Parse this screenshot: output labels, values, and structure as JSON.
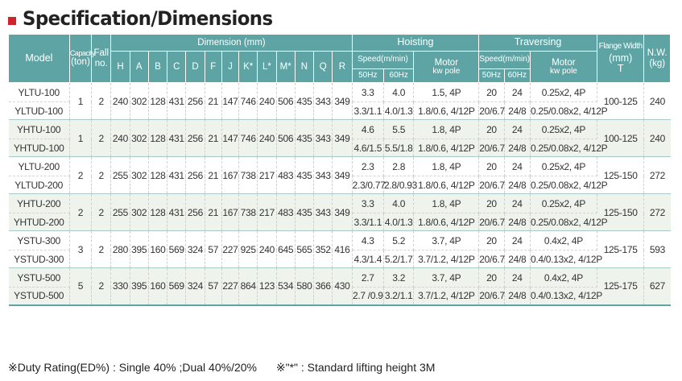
{
  "title": "Specification/Dimensions",
  "header": {
    "model": "Model",
    "capacity": "Capacity",
    "capacity_unit": "(ton)",
    "fall": "Fall",
    "fall_unit": "no.",
    "dimension": "Dimension (mm)",
    "dims": [
      "H",
      "A",
      "B",
      "C",
      "D",
      "F",
      "J",
      "K*",
      "L*",
      "M*",
      "N",
      "Q",
      "R"
    ],
    "hoisting": "Hoisting",
    "traversing": "Traversing",
    "speed": "Speed(m/min)",
    "motor": "Motor",
    "kw_pole": "kw pole",
    "hz50": "50Hz",
    "hz60": "60Hz",
    "flange": "Flange Width",
    "flange_unit": "(mm)",
    "flange_sym": "T",
    "nw": "N.W.",
    "nw_unit": "(kg)"
  },
  "groups": [
    {
      "capacity": "1",
      "fall": "2",
      "dims": [
        "240",
        "302",
        "128",
        "431",
        "256",
        "21",
        "147",
        "746",
        "240",
        "506",
        "435",
        "343",
        "349"
      ],
      "flange": "100-125",
      "nw": "240",
      "rows": [
        {
          "model": "YLTU-100",
          "h50": "3.3",
          "h60": "4.0",
          "hmotor": "1.5, 4P",
          "t50": "20",
          "t60": "24",
          "tmotor": "0.25x2, 4P"
        },
        {
          "model": "YLTUD-100",
          "h50": "3.3/1.1",
          "h60": "4.0/1.3",
          "hmotor": "1.8/0.6, 4/12P",
          "t50": "20/6.7",
          "t60": "24/8",
          "tmotor": "0.25/0.08x2, 4/12P"
        }
      ]
    },
    {
      "capacity": "1",
      "fall": "2",
      "dims": [
        "240",
        "302",
        "128",
        "431",
        "256",
        "21",
        "147",
        "746",
        "240",
        "506",
        "435",
        "343",
        "349"
      ],
      "flange": "100-125",
      "nw": "240",
      "rows": [
        {
          "model": "YHTU-100",
          "h50": "4.6",
          "h60": "5.5",
          "hmotor": "1.8, 4P",
          "t50": "20",
          "t60": "24",
          "tmotor": "0.25x2, 4P"
        },
        {
          "model": "YHTUD-100",
          "h50": "4.6/1.5",
          "h60": "5.5/1.8",
          "hmotor": "1.8/0.6, 4/12P",
          "t50": "20/6.7",
          "t60": "24/8",
          "tmotor": "0.25/0.08x2, 4/12P"
        }
      ]
    },
    {
      "capacity": "2",
      "fall": "2",
      "dims": [
        "255",
        "302",
        "128",
        "431",
        "256",
        "21",
        "167",
        "738",
        "217",
        "483",
        "435",
        "343",
        "349"
      ],
      "flange": "125-150",
      "nw": "272",
      "rows": [
        {
          "model": "YLTU-200",
          "h50": "2.3",
          "h60": "2.8",
          "hmotor": "1.8, 4P",
          "t50": "20",
          "t60": "24",
          "tmotor": "0.25x2, 4P"
        },
        {
          "model": "YLTUD-200",
          "h50": "2.3/0.77",
          "h60": "2.8/0.93",
          "hmotor": "1.8/0.6, 4/12P",
          "t50": "20/6.7",
          "t60": "24/8",
          "tmotor": "0.25/0.08x2, 4/12P"
        }
      ]
    },
    {
      "capacity": "2",
      "fall": "2",
      "dims": [
        "255",
        "302",
        "128",
        "431",
        "256",
        "21",
        "167",
        "738",
        "217",
        "483",
        "435",
        "343",
        "349"
      ],
      "flange": "125-150",
      "nw": "272",
      "rows": [
        {
          "model": "YHTU-200",
          "h50": "3.3",
          "h60": "4.0",
          "hmotor": "1.8, 4P",
          "t50": "20",
          "t60": "24",
          "tmotor": "0.25x2, 4P"
        },
        {
          "model": "YHTUD-200",
          "h50": "3.3/1.1",
          "h60": "4.0/1.3",
          "hmotor": "1.8/0.6, 4/12P",
          "t50": "20/6.7",
          "t60": "24/8",
          "tmotor": "0.25/0.08x2, 4/12P"
        }
      ]
    },
    {
      "capacity": "3",
      "fall": "2",
      "dims": [
        "280",
        "395",
        "160",
        "569",
        "324",
        "57",
        "227",
        "925",
        "240",
        "645",
        "565",
        "352",
        "416"
      ],
      "flange": "125-175",
      "nw": "593",
      "rows": [
        {
          "model": "YSTU-300",
          "h50": "4.3",
          "h60": "5.2",
          "hmotor": "3.7, 4P",
          "t50": "20",
          "t60": "24",
          "tmotor": "0.4x2, 4P"
        },
        {
          "model": "YSTUD-300",
          "h50": "4.3/1.4",
          "h60": "5.2/1.7",
          "hmotor": "3.7/1.2, 4/12P",
          "t50": "20/6.7",
          "t60": "24/8",
          "tmotor": "0.4/0.13x2, 4/12P"
        }
      ]
    },
    {
      "capacity": "5",
      "fall": "2",
      "dims": [
        "330",
        "395",
        "160",
        "569",
        "324",
        "57",
        "227",
        "864",
        "123",
        "534",
        "580",
        "366",
        "430"
      ],
      "flange": "125-175",
      "nw": "627",
      "rows": [
        {
          "model": "YSTU-500",
          "h50": "2.7",
          "h60": "3.2",
          "hmotor": "3.7, 4P",
          "t50": "20",
          "t60": "24",
          "tmotor": "0.4x2, 4P"
        },
        {
          "model": "YSTUD-500",
          "h50": "2.7 /0.9",
          "h60": "3.2/1.1",
          "hmotor": "3.7/1.2, 4/12P",
          "t50": "20/6.7",
          "t60": "24/8",
          "tmotor": "0.4/0.13x2, 4/12P"
        }
      ]
    }
  ],
  "footnote": {
    "duty": "※Duty Rating(ED%) : Single 40% ;Dual 40%/20%",
    "star": "※\"*\" : Standard lifting height 3M"
  },
  "colors": {
    "header_bg": "#5fa4a4",
    "alt_row_bg": "#eef3ec",
    "title_square": "#d0232a"
  }
}
